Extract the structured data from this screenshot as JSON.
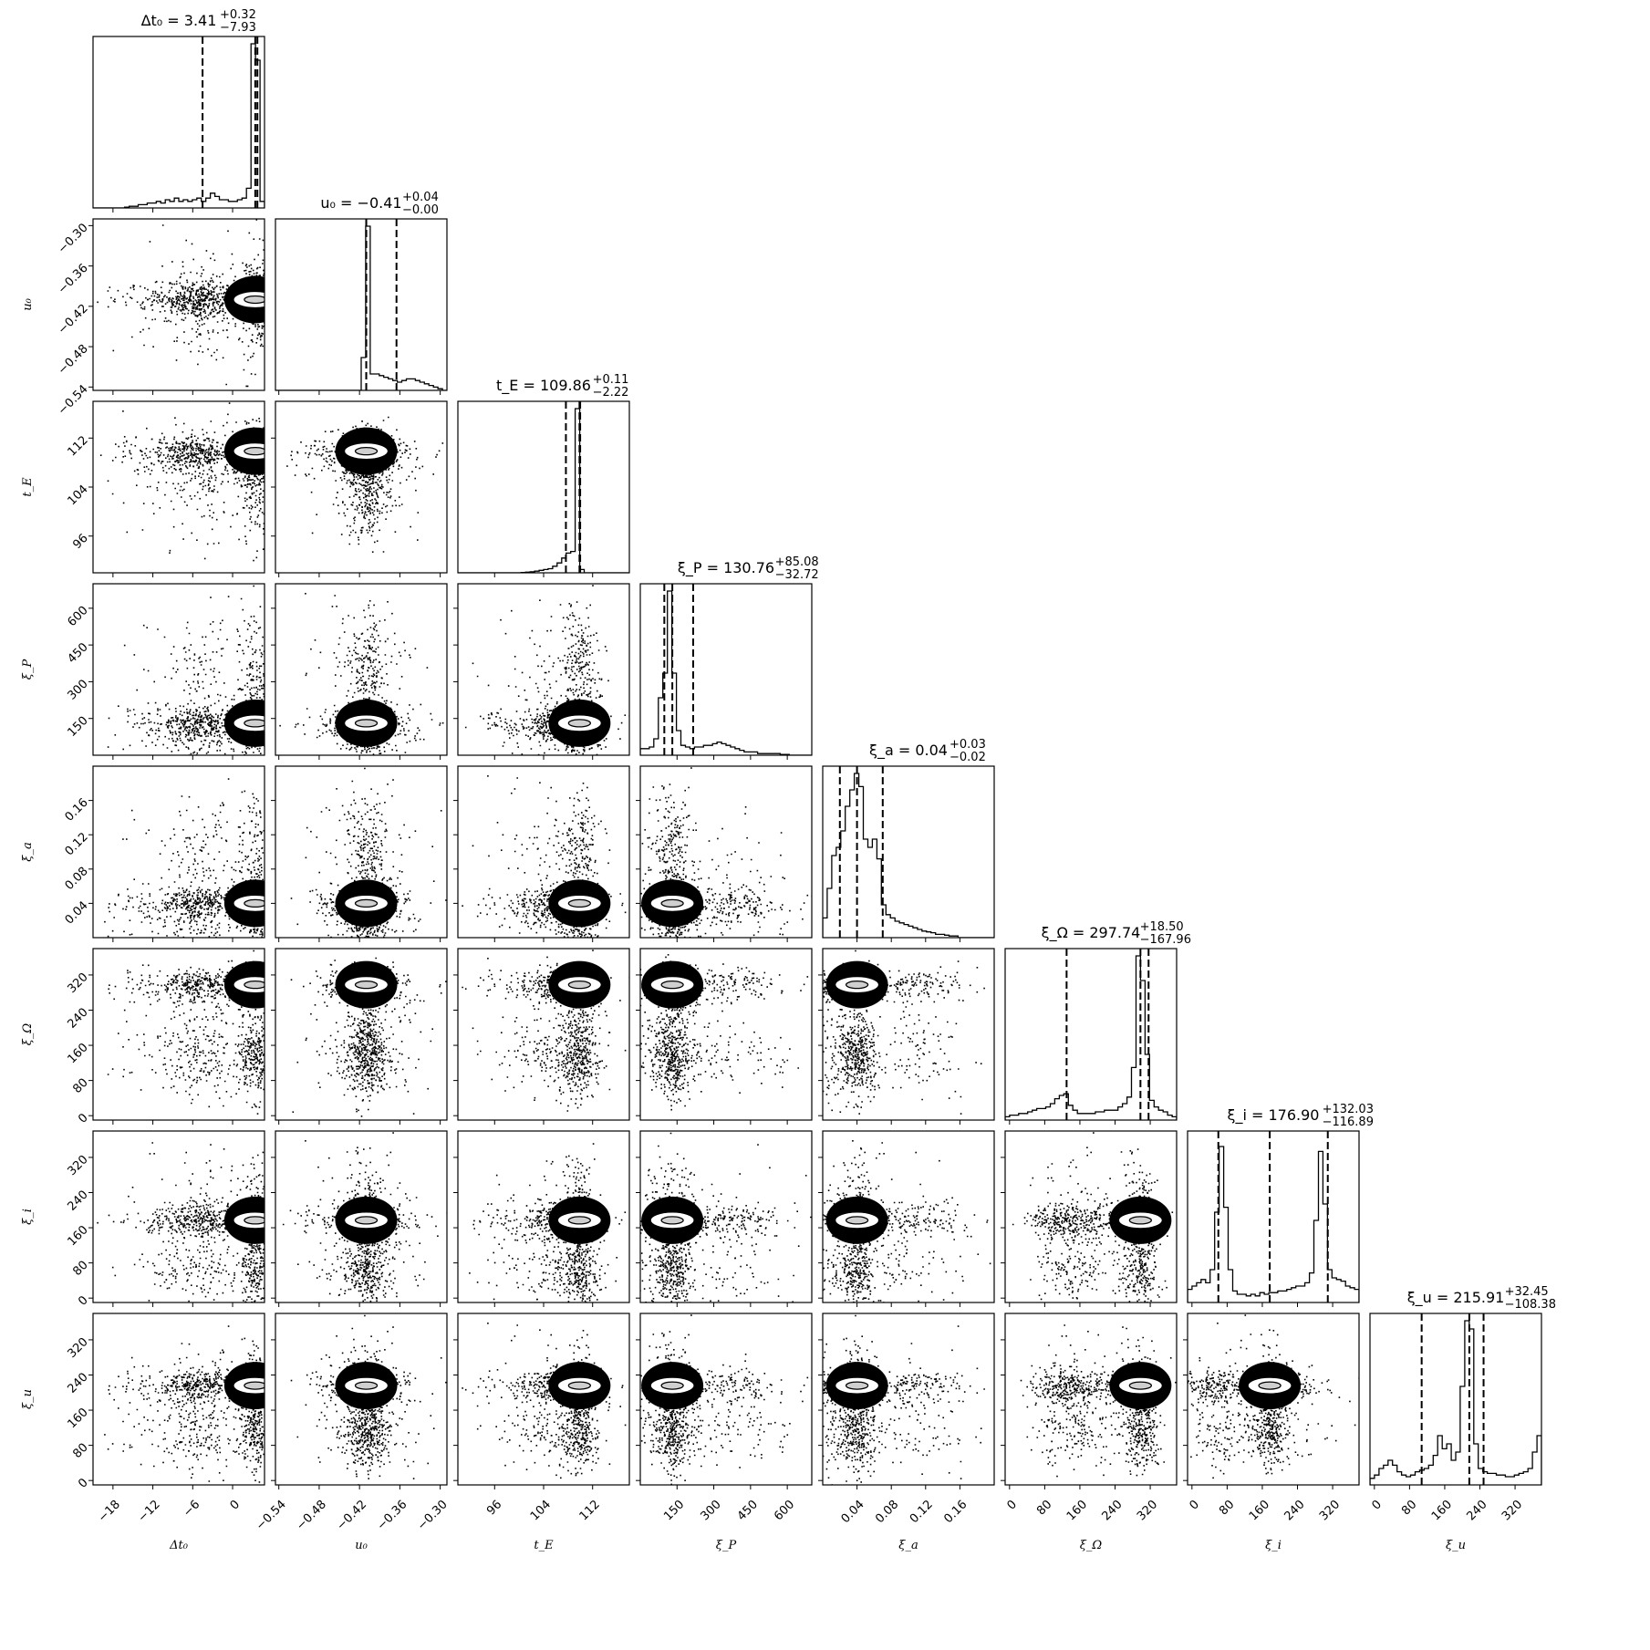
{
  "chart_data": {
    "type": "corner",
    "parameters": [
      {
        "name": "dt0",
        "label": "Δt₀",
        "range": [
          -21,
          4.8
        ],
        "ticks": [
          -18,
          -12,
          -6,
          0
        ],
        "tick_labels": [
          "−18",
          "−12",
          "−6",
          "0"
        ],
        "title": "Δt₀ = 3.41",
        "title_upper": "+0.32",
        "title_lower": "−7.93",
        "median": 3.41,
        "quantiles": [
          -4.52,
          3.41,
          3.73
        ],
        "hist": [
          0,
          0,
          0,
          0,
          0,
          0,
          0,
          0.005,
          0.01,
          0.01,
          0.02,
          0.02,
          0.03,
          0.03,
          0.04,
          0.03,
          0.05,
          0.04,
          0.06,
          0.04,
          0.05,
          0.04,
          0.05,
          0.06,
          0.04,
          0.06,
          0.09,
          0.07,
          0.05,
          0.05,
          0.04,
          0.04,
          0.05,
          0.06,
          0.12,
          1.0,
          0.9,
          0.04
        ]
      },
      {
        "name": "u0",
        "label": "u₀",
        "range": [
          -0.545,
          -0.29
        ],
        "ticks": [
          -0.54,
          -0.48,
          -0.42,
          -0.36,
          -0.3
        ],
        "tick_labels": [
          "−0.54",
          "−0.48",
          "−0.42",
          "−0.36",
          "−0.30"
        ],
        "title": "u₀ = −0.41",
        "title_upper": "+0.04",
        "title_lower": "−0.00",
        "median": -0.41,
        "quantiles": [
          -0.41,
          -0.41,
          -0.365
        ],
        "hist": [
          0,
          0,
          0,
          0,
          0,
          0,
          0,
          0,
          0,
          0,
          0,
          0,
          0,
          0,
          0,
          0,
          0,
          0,
          0,
          0.2,
          1.0,
          0.1,
          0.1,
          0.09,
          0.08,
          0.07,
          0.06,
          0.05,
          0.06,
          0.07,
          0.07,
          0.06,
          0.05,
          0.04,
          0.03,
          0.02,
          0.01,
          0
        ]
      },
      {
        "name": "tE",
        "label": "t_E",
        "range": [
          90,
          118
        ],
        "ticks": [
          96,
          104,
          112
        ],
        "tick_labels": [
          "96",
          "104",
          "112"
        ],
        "title": "t_E = 109.86",
        "title_upper": "+0.11",
        "title_lower": "−2.22",
        "median": 109.86,
        "quantiles": [
          107.64,
          109.86,
          109.97
        ],
        "hist": [
          0,
          0,
          0,
          0,
          0,
          0,
          0,
          0,
          0,
          0,
          0,
          0,
          0,
          0,
          0.002,
          0.004,
          0.006,
          0.01,
          0.015,
          0.02,
          0.025,
          0.04,
          0.06,
          0.09,
          0.12,
          0.13,
          1.0,
          0.02,
          0,
          0,
          0,
          0,
          0,
          0,
          0,
          0,
          0,
          0
        ]
      },
      {
        "name": "xiP",
        "label": "ξ_P",
        "range": [
          0,
          700
        ],
        "ticks": [
          150,
          300,
          450,
          600
        ],
        "tick_labels": [
          "150",
          "300",
          "450",
          "600"
        ],
        "title": "ξ_P = 130.76",
        "title_upper": "+85.08",
        "title_lower": "−32.72",
        "median": 130.76,
        "quantiles": [
          98.04,
          130.76,
          215.84
        ],
        "hist": [
          0.04,
          0.04,
          0.05,
          0.1,
          0.35,
          0.5,
          1.0,
          0.5,
          0.15,
          0.06,
          0.05,
          0.04,
          0.05,
          0.05,
          0.06,
          0.06,
          0.07,
          0.08,
          0.07,
          0.06,
          0.05,
          0.04,
          0.03,
          0.02,
          0.02,
          0.02,
          0.01,
          0.01,
          0.01,
          0.01,
          0.01,
          0.005,
          0.005,
          0,
          0,
          0,
          0,
          0
        ]
      },
      {
        "name": "xia",
        "label": "ξ_a",
        "range": [
          0,
          0.2
        ],
        "ticks": [
          0.04,
          0.08,
          0.12,
          0.16
        ],
        "tick_labels": [
          "0.04",
          "0.08",
          "0.12",
          "0.16"
        ],
        "title": "ξ_a = 0.04",
        "title_upper": "+0.03",
        "title_lower": "−0.02",
        "median": 0.04,
        "quantiles": [
          0.02,
          0.04,
          0.07
        ],
        "hist": [
          0.12,
          0.3,
          0.5,
          0.55,
          0.65,
          0.8,
          0.9,
          1.0,
          0.92,
          0.6,
          0.55,
          0.6,
          0.48,
          0.2,
          0.14,
          0.12,
          0.1,
          0.09,
          0.08,
          0.07,
          0.06,
          0.05,
          0.04,
          0.035,
          0.03,
          0.02,
          0.02,
          0.015,
          0.01,
          0.01,
          0,
          0,
          0,
          0,
          0,
          0,
          0,
          0
        ]
      },
      {
        "name": "xiOmega",
        "label": "ξ_Ω",
        "range": [
          -10,
          380
        ],
        "ticks": [
          0,
          80,
          160,
          240,
          320
        ],
        "tick_labels": [
          "0",
          "80",
          "160",
          "240",
          "320"
        ],
        "title": "ξ_Ω = 297.74",
        "title_upper": "+18.50",
        "title_lower": "−167.96",
        "median": 297.74,
        "quantiles": [
          129.78,
          297.74,
          316.24
        ],
        "hist": [
          0.02,
          0.03,
          0.03,
          0.04,
          0.04,
          0.05,
          0.06,
          0.07,
          0.07,
          0.08,
          0.1,
          0.13,
          0.15,
          0.16,
          0.09,
          0.06,
          0.04,
          0.04,
          0.04,
          0.04,
          0.05,
          0.05,
          0.06,
          0.06,
          0.06,
          0.08,
          0.1,
          0.14,
          0.32,
          1.0,
          0.85,
          0.4,
          0.12,
          0.08,
          0.06,
          0.05,
          0.03,
          0.02
        ]
      },
      {
        "name": "xii",
        "label": "ξ_i",
        "range": [
          -10,
          380
        ],
        "ticks": [
          0,
          80,
          160,
          240,
          320
        ],
        "tick_labels": [
          "0",
          "80",
          "160",
          "240",
          "320"
        ],
        "title": "ξ_i = 176.90",
        "title_upper": "+132.03",
        "title_lower": "−116.89",
        "median": 176.9,
        "quantiles": [
          60.01,
          176.9,
          308.93
        ],
        "hist": [
          0.08,
          0.1,
          0.12,
          0.14,
          0.12,
          0.2,
          0.55,
          0.95,
          0.58,
          0.2,
          0.07,
          0.05,
          0.05,
          0.04,
          0.05,
          0.04,
          0.06,
          0.05,
          0.06,
          0.06,
          0.07,
          0.07,
          0.08,
          0.09,
          0.1,
          0.1,
          0.12,
          0.18,
          0.5,
          0.92,
          0.6,
          0.2,
          0.15,
          0.14,
          0.13,
          0.1,
          0.09,
          0.08
        ]
      },
      {
        "name": "xiu",
        "label": "ξ_u",
        "range": [
          -10,
          380
        ],
        "ticks": [
          0,
          80,
          160,
          240,
          320
        ],
        "tick_labels": [
          "0",
          "80",
          "160",
          "240",
          "320"
        ],
        "title": "ξ_u = 215.91",
        "title_upper": "+32.45",
        "title_lower": "−108.38",
        "median": 215.91,
        "quantiles": [
          107.53,
          215.91,
          248.36
        ],
        "hist": [
          0.04,
          0.06,
          0.1,
          0.12,
          0.15,
          0.12,
          0.08,
          0.06,
          0.05,
          0.06,
          0.08,
          0.09,
          0.1,
          0.12,
          0.18,
          0.3,
          0.22,
          0.25,
          0.15,
          0.2,
          0.6,
          1.0,
          0.95,
          0.25,
          0.1,
          0.08,
          0.07,
          0.07,
          0.06,
          0.06,
          0.05,
          0.05,
          0.06,
          0.07,
          0.08,
          0.1,
          0.2,
          0.3
        ]
      }
    ],
    "samples_note_hidden": false
  }
}
